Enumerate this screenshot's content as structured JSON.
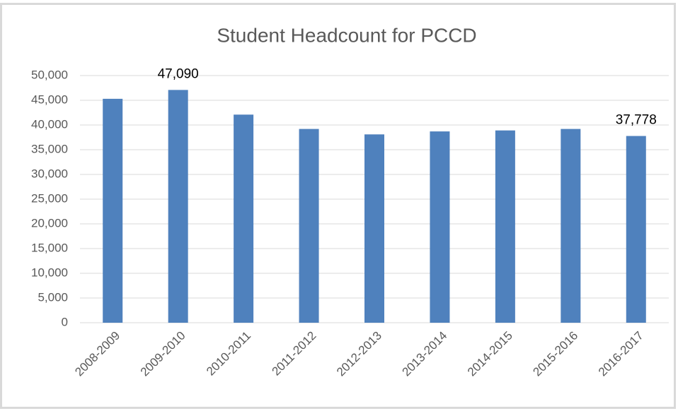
{
  "chart_data": {
    "type": "bar",
    "title": "Student Headcount for PCCD",
    "categories": [
      "2008-2009",
      "2009-2010",
      "2010-2011",
      "2011-2012",
      "2012-2013",
      "2013-2014",
      "2014-2015",
      "2015-2016",
      "2016-2017"
    ],
    "values": [
      45300,
      47090,
      42100,
      39200,
      38100,
      38700,
      38900,
      39200,
      37778
    ],
    "value_labels": [
      null,
      "47,090",
      null,
      null,
      null,
      null,
      null,
      null,
      "37,778"
    ],
    "color": "#4f81bd",
    "ylim": [
      0,
      50000
    ],
    "yticks": [
      0,
      {
        "value": 5000,
        "label": "5,000"
      },
      {
        "value": 10000,
        "label": "10,000"
      },
      {
        "value": 15000,
        "label": "15,000"
      },
      {
        "value": 20000,
        "label": "20,000"
      },
      {
        "value": 25000,
        "label": "25,000"
      },
      {
        "value": 30000,
        "label": "30,000"
      },
      {
        "value": 35000,
        "label": "35,000"
      },
      {
        "value": 40000,
        "label": "40,000"
      },
      {
        "value": 45000,
        "label": "45,000"
      },
      {
        "value": 50000,
        "label": "50,000"
      }
    ],
    "grid": true
  }
}
